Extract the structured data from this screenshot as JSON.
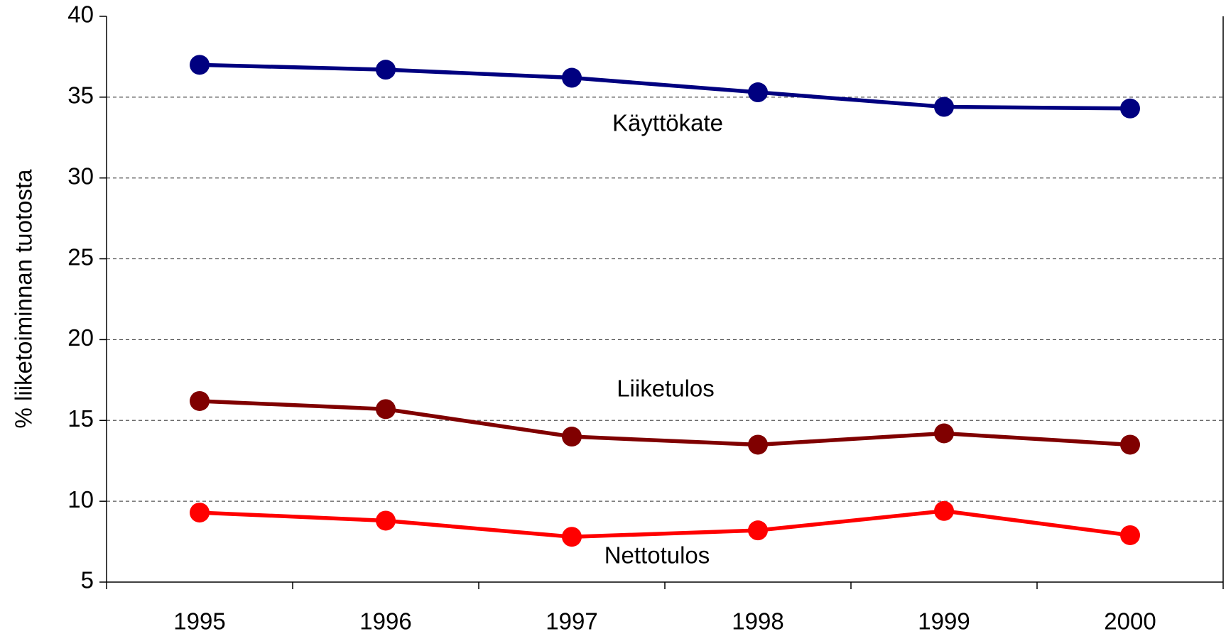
{
  "chart_data": {
    "type": "line",
    "y_label": "% liiketoiminnan tuotosta",
    "categories": [
      "1995",
      "1996",
      "1997",
      "1998",
      "1999",
      "2000"
    ],
    "series": [
      {
        "name": "Käyttökate",
        "color": "#000080",
        "values": [
          37.0,
          36.7,
          36.2,
          35.3,
          34.4,
          34.3
        ]
      },
      {
        "name": "Liiketulos",
        "color": "#800000",
        "values": [
          16.2,
          15.7,
          14.0,
          13.5,
          14.2,
          13.5
        ]
      },
      {
        "name": "Nettotulos",
        "color": "#ff0000",
        "values": [
          9.3,
          8.8,
          7.8,
          8.2,
          9.4,
          7.9
        ]
      }
    ],
    "ylim": [
      5,
      40
    ],
    "yticks": [
      5,
      10,
      15,
      20,
      25,
      30,
      35,
      40
    ],
    "grid": true
  }
}
